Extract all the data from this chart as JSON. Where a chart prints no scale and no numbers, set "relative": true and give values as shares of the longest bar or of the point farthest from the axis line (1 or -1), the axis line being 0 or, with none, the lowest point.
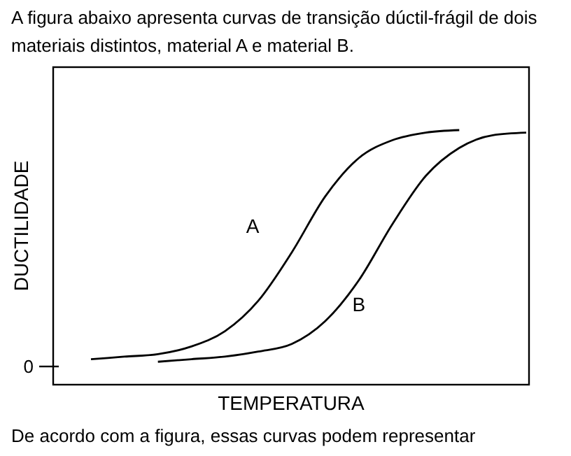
{
  "chart_data": {
    "type": "line",
    "relative": true,
    "title": "A figura abaixo apresenta curvas de transição dúctil-frágil de dois materiais distintos, material A e material B.",
    "xlabel": "TEMPERATURA",
    "ylabel": "DUCTILIDADE",
    "legend": false,
    "marker": "none",
    "line_style": "solid",
    "categories": [
      null,
      null,
      null,
      null,
      null,
      null,
      null,
      null,
      null,
      null,
      null,
      null,
      null,
      null
    ],
    "series": [
      {
        "name": "A",
        "color": "#000000",
        "values": [
          0.1,
          0.11,
          0.12,
          0.15,
          0.21,
          0.33,
          0.52,
          0.74,
          0.89,
          0.96,
          0.99,
          1.0,
          null,
          null
        ]
      },
      {
        "name": "B",
        "color": "#000000",
        "values": [
          null,
          null,
          0.09,
          0.1,
          0.11,
          0.13,
          0.16,
          0.25,
          0.41,
          0.63,
          0.82,
          0.93,
          0.98,
          0.99
        ]
      }
    ],
    "annotations": [
      "0",
      "De acordo com a figura, essas curvas podem representar"
    ]
  }
}
